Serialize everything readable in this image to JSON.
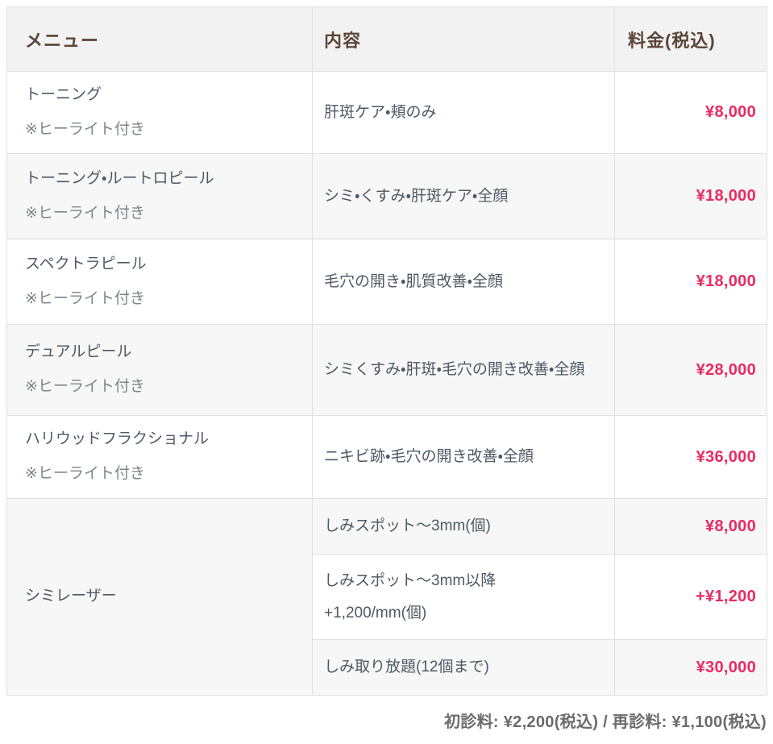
{
  "table": {
    "headers": {
      "menu": "メニュー",
      "description": "内容",
      "price": "料金(税込)"
    },
    "rows": [
      {
        "menu": "トーニング",
        "note": "※ヒーライト付き",
        "description": "肝斑ケア・頬のみ",
        "price": "¥8,000"
      },
      {
        "menu": "トーニング・ルートロピール",
        "note": "※ヒーライト付き",
        "description": "シミ・くすみ・肝斑ケア・全顔",
        "price": "¥18,000"
      },
      {
        "menu": "スペクトラピール",
        "note": "※ヒーライト付き",
        "description": "毛穴の開き・肌質改善・全顔",
        "price": "¥18,000"
      },
      {
        "menu": "デュアルピール",
        "note": "※ヒーライト付き",
        "description": "シミくすみ・肝斑・毛穴の開き改善・全顔",
        "price": "¥28,000"
      },
      {
        "menu": "ハリウッドフラクショナル",
        "note": "※ヒーライト付き",
        "description": "ニキビ跡・毛穴の開き改善・全顔",
        "price": "¥36,000"
      }
    ],
    "group": {
      "menu": "シミレーザー",
      "subrows": [
        {
          "description": "しみスポット〜3mm(個)",
          "price": "¥8,000"
        },
        {
          "description": "しみスポット〜3mm以降\n+1,200/mm(個)",
          "price": "+¥1,200"
        },
        {
          "description": "しみ取り放題(12個まで)",
          "price": "¥30,000"
        }
      ]
    }
  },
  "footer": {
    "text": "初診料: ¥2,200(税込) / 再診料: ¥1,100(税込)"
  },
  "colors": {
    "price_accent": "#ea2a63",
    "header_text": "#5b4537",
    "header_bg": "#f2f2f2",
    "stripe_bg": "#f7f7f7",
    "body_text": "#4d5966",
    "note_text": "#7d848c",
    "border": "#e0e0e0",
    "footer_text": "#6b6b6b"
  }
}
